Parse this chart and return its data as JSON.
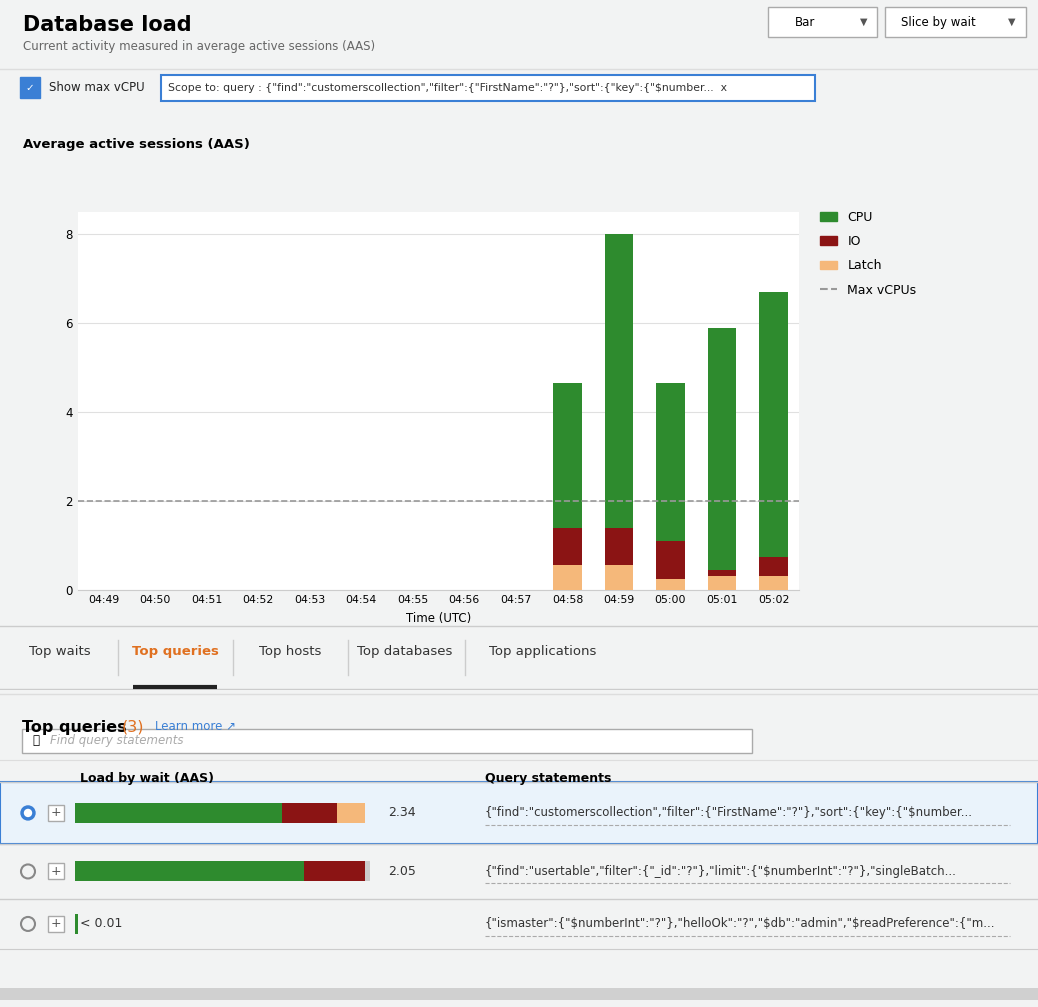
{
  "title": "Database load",
  "subtitle": "Current activity measured in average active sessions (AAS)",
  "chart_title": "Average active sessions (AAS)",
  "xlabel": "Time (UTC)",
  "ylim": [
    0,
    8.5
  ],
  "yticks": [
    0,
    2,
    4,
    6,
    8
  ],
  "time_labels": [
    "04:49",
    "04:50",
    "04:51",
    "04:52",
    "04:53",
    "04:54",
    "04:55",
    "04:56",
    "04:57",
    "04:58",
    "04:59",
    "05:00",
    "05:01",
    "05:02"
  ],
  "bar_positions": [
    9,
    10,
    11,
    12,
    13
  ],
  "latch": [
    0.55,
    0.55,
    0.25,
    0.3,
    0.3
  ],
  "io": [
    0.85,
    0.85,
    0.85,
    0.15,
    0.45
  ],
  "cpu": [
    3.25,
    6.6,
    3.55,
    5.45,
    5.95
  ],
  "max_vcpu": 2.0,
  "colors": {
    "cpu": "#2e8b2e",
    "io": "#8b1414",
    "latch": "#f5b87a",
    "max_vcpu_line": "#999999",
    "background_page": "#f2f3f3",
    "background_white": "#ffffff",
    "grid": "#e0e0e0",
    "title_text": "#000000",
    "subtitle_text": "#666666",
    "tab_active": "#e07020",
    "tab_inactive": "#333333",
    "scope_border": "#3a7fd5",
    "learn_more": "#3a7fd5",
    "row1_bg": "#eaf3fb",
    "row1_border": "#3a7fd5",
    "bar_green": "#2e8b2e",
    "bar_red": "#8b1414",
    "bar_orange": "#f5b87a"
  },
  "tabs": [
    "Top waits",
    "Top queries",
    "Top hosts",
    "Top databases",
    "Top applications"
  ],
  "active_tab": "Top queries",
  "queries": [
    {
      "selected": true,
      "load": "2.34",
      "cpu_pct": 0.68,
      "io_pct": 0.18,
      "latch_pct": 0.09,
      "statement": "{\"find\":\"customerscollection\",\"filter\":{\"FirstName\":\"?\"},\"sort\":{\"key\":{\"$number..."
    },
    {
      "selected": false,
      "load": "2.05",
      "cpu_pct": 0.75,
      "io_pct": 0.2,
      "latch_pct": 0.01,
      "statement": "{\"find\":\"usertable\",\"filter\":{\"_id\":\"?\"},\"limit\":{\"$numberInt\":\"?\"},\"singleBatch..."
    },
    {
      "selected": false,
      "load": "< 0.01",
      "cpu_pct": 0.002,
      "io_pct": 0.0,
      "latch_pct": 0.0,
      "statement": "{\"ismaster\":{\"$numberInt\":\"?\"},\"helloOk\":\"?\",\"$db\":\"admin\",\"$readPreference\":{\"m..."
    }
  ],
  "checkbox_label": "Show max vCPU",
  "dropdown1": "Bar",
  "dropdown2": "Slice by wait",
  "search_placeholder": "Find query statements",
  "load_col": "Load by wait (AAS)",
  "query_col": "Query statements",
  "scope_text": "Scope to: query : {\"find\":\"customerscollection\",\"filter\":{\"FirstName\":\"?\"},\"sort\":{\"key\":{\"$number...  x"
}
